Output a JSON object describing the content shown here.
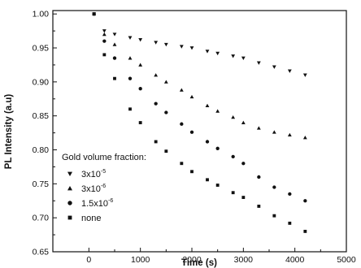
{
  "chart_data": {
    "type": "scatter",
    "xlabel": "Time (s)",
    "ylabel": "PL Intensity (a.u)",
    "xlim": [
      -700,
      5000
    ],
    "ylim": [
      0.65,
      1.005
    ],
    "xticks": [
      0,
      1000,
      2000,
      3000,
      4000,
      5000
    ],
    "yticks": [
      0.65,
      0.7,
      0.75,
      0.8,
      0.85,
      0.9,
      0.95,
      1.0
    ],
    "xtick_labels": [
      "0",
      "1000",
      "2000",
      "3000",
      "4000",
      "5000"
    ],
    "ytick_labels": [
      "0.65",
      "0.70",
      "0.75",
      "0.80",
      "0.85",
      "0.90",
      "0.95",
      "1.00"
    ],
    "grid": false,
    "legend": {
      "title": "Gold volume fraction:",
      "placement": "bottom-left",
      "entries": [
        {
          "base": "3x10",
          "exp": "-5",
          "marker": "triangle-down"
        },
        {
          "base": "3x10",
          "exp": "-6",
          "marker": "triangle-up"
        },
        {
          "base": "1.5x10",
          "exp": "-6",
          "marker": "circle"
        },
        {
          "base": "none",
          "exp": "",
          "marker": "square"
        }
      ]
    },
    "series": [
      {
        "name": "3x10-5",
        "marker": "triangle-down",
        "x": [
          100,
          300,
          500,
          800,
          1000,
          1300,
          1500,
          1800,
          2000,
          2300,
          2500,
          2800,
          3000,
          3300,
          3600,
          3900,
          4200
        ],
        "y": [
          1.0,
          0.975,
          0.97,
          0.965,
          0.962,
          0.958,
          0.955,
          0.952,
          0.95,
          0.945,
          0.942,
          0.938,
          0.935,
          0.928,
          0.922,
          0.916,
          0.91
        ]
      },
      {
        "name": "3x10-6",
        "marker": "triangle-up",
        "x": [
          100,
          300,
          500,
          800,
          1000,
          1300,
          1500,
          1800,
          2000,
          2300,
          2500,
          2800,
          3000,
          3300,
          3600,
          3900,
          4200
        ],
        "y": [
          1.0,
          0.97,
          0.955,
          0.935,
          0.925,
          0.91,
          0.9,
          0.888,
          0.878,
          0.865,
          0.857,
          0.848,
          0.84,
          0.832,
          0.826,
          0.822,
          0.818
        ]
      },
      {
        "name": "1.5x10-6",
        "marker": "circle",
        "x": [
          100,
          300,
          500,
          800,
          1000,
          1300,
          1500,
          1800,
          2000,
          2300,
          2500,
          2800,
          3000,
          3300,
          3600,
          3900,
          4200
        ],
        "y": [
          1.0,
          0.96,
          0.935,
          0.905,
          0.89,
          0.868,
          0.855,
          0.838,
          0.826,
          0.812,
          0.802,
          0.79,
          0.78,
          0.76,
          0.745,
          0.735,
          0.725
        ]
      },
      {
        "name": "none",
        "marker": "square",
        "x": [
          100,
          300,
          500,
          800,
          1000,
          1300,
          1500,
          1800,
          2000,
          2300,
          2500,
          2800,
          3000,
          3300,
          3600,
          3900,
          4200
        ],
        "y": [
          1.0,
          0.94,
          0.905,
          0.86,
          0.84,
          0.812,
          0.798,
          0.78,
          0.768,
          0.756,
          0.748,
          0.737,
          0.73,
          0.717,
          0.703,
          0.692,
          0.68
        ]
      }
    ]
  }
}
